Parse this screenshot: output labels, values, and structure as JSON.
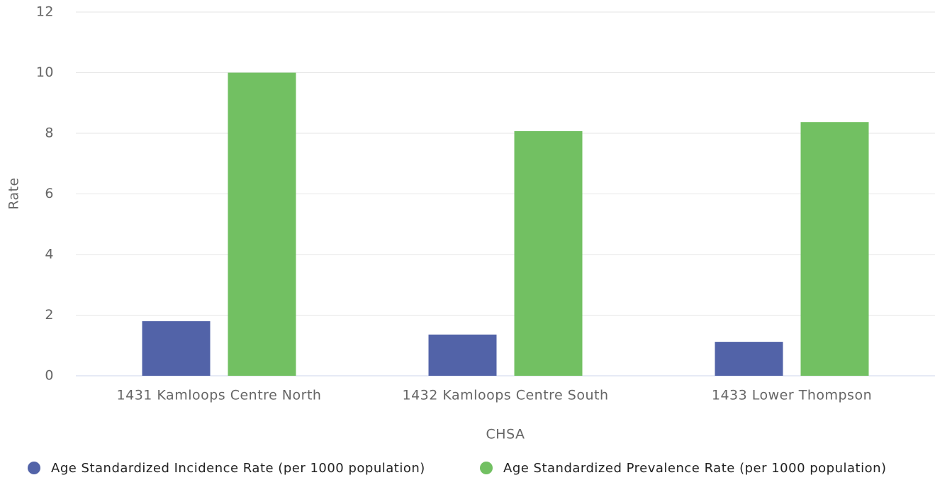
{
  "chart_data": {
    "type": "bar",
    "categories": [
      "1431 Kamloops Centre North",
      "1432 Kamloops Centre South",
      "1433 Lower Thompson"
    ],
    "series": [
      {
        "name": "Age Standardized Incidence Rate (per 1000 population)",
        "color": "#5263a8",
        "values": [
          1.8,
          1.36,
          1.12
        ]
      },
      {
        "name": "Age Standardized Prevalence Rate (per 1000 population)",
        "color": "#72c062",
        "values": [
          10.0,
          8.07,
          8.37
        ]
      }
    ],
    "x_label": "CHSA",
    "y_label": "Rate",
    "ylim": [
      0,
      12
    ],
    "yticks": [
      0,
      2,
      4,
      6,
      8,
      10,
      12
    ],
    "grid": true,
    "legend": "bottom"
  }
}
